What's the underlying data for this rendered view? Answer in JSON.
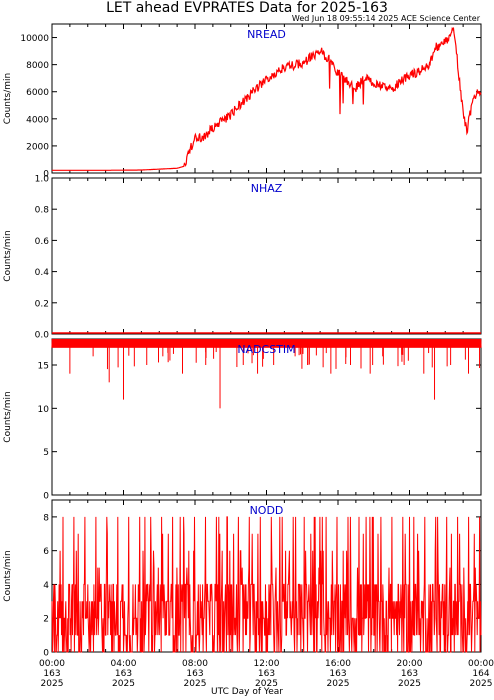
{
  "header": {
    "title": "LET ahead EVPRATES Data for 2025-163",
    "timestamp": "Wed Jun 18 09:55:14 2025 ACE Science Center"
  },
  "colors": {
    "series": "#ff0000",
    "panel_label": "#0000cc",
    "axes": "#000000"
  },
  "chart_data": [
    {
      "type": "line",
      "name": "NREAD",
      "ylabel": "Counts/min",
      "ylim": [
        0,
        11000
      ],
      "yticks": [
        0,
        2000,
        4000,
        6000,
        8000,
        10000
      ],
      "ytick_labels": [
        "0",
        "2000",
        "4000",
        "6000",
        "8000",
        "10000"
      ],
      "x_hours": [
        0,
        3,
        5,
        7,
        7.4,
        8,
        8.4,
        9,
        10,
        11,
        12,
        13,
        14,
        15,
        15.5,
        16,
        17,
        17.5,
        18,
        19,
        20,
        21,
        21.5,
        22,
        22.5,
        22.9,
        23.2,
        23.6,
        24
      ],
      "values": [
        200,
        200,
        220,
        350,
        500,
        2700,
        2600,
        3300,
        4300,
        5700,
        6900,
        7800,
        8100,
        9000,
        8400,
        7400,
        6300,
        7000,
        6600,
        6200,
        7200,
        7800,
        9300,
        9700,
        10600,
        5500,
        3000,
        5800,
        5900
      ]
    },
    {
      "type": "line",
      "name": "NHAZ",
      "ylabel": "Counts/min",
      "ylim": [
        0,
        1.0
      ],
      "yticks": [
        0,
        0.2,
        0.4,
        0.6,
        0.8,
        1.0
      ],
      "ytick_labels": [
        "0.0",
        "0.2",
        "0.4",
        "0.6",
        "0.8",
        "1.0"
      ],
      "x_hours": [
        0,
        24
      ],
      "values": [
        0,
        0
      ]
    },
    {
      "type": "line",
      "name": "NADCSTIM",
      "ylabel": "Counts/min",
      "ylim": [
        0,
        18
      ],
      "yticks": [
        0,
        5,
        10,
        15
      ],
      "ytick_labels": [
        "0",
        "5",
        "10",
        "15"
      ],
      "baseline": 17.5,
      "dips": [
        [
          1.0,
          14
        ],
        [
          2.3,
          16
        ],
        [
          3.2,
          13
        ],
        [
          4.0,
          11
        ],
        [
          5.3,
          15
        ],
        [
          6.2,
          16
        ],
        [
          7.3,
          14
        ],
        [
          8.6,
          15
        ],
        [
          9.4,
          10
        ],
        [
          10.7,
          15
        ],
        [
          11.5,
          14
        ],
        [
          12.4,
          15
        ],
        [
          13.6,
          16
        ],
        [
          14.3,
          15
        ],
        [
          15.6,
          14
        ],
        [
          16.7,
          15
        ],
        [
          17.8,
          14
        ],
        [
          18.5,
          16
        ],
        [
          19.7,
          15
        ],
        [
          20.8,
          14
        ],
        [
          21.4,
          11
        ],
        [
          22.3,
          15
        ],
        [
          23.3,
          14
        ]
      ]
    },
    {
      "type": "line",
      "name": "NODD",
      "ylabel": "Counts/min",
      "ylim": [
        0,
        9
      ],
      "yticks": [
        0,
        2,
        4,
        6,
        8
      ],
      "ytick_labels": [
        "0",
        "2",
        "4",
        "6",
        "8"
      ],
      "value_range": [
        0,
        8
      ]
    }
  ],
  "xaxis": {
    "title": "UTC Day of Year",
    "ticks": [
      {
        "hour": 0,
        "time": "00:00",
        "doy": "163",
        "year": "2025"
      },
      {
        "hour": 4,
        "time": "04:00",
        "doy": "163",
        "year": "2025"
      },
      {
        "hour": 8,
        "time": "08:00",
        "doy": "163",
        "year": "2025"
      },
      {
        "hour": 12,
        "time": "12:00",
        "doy": "163",
        "year": "2025"
      },
      {
        "hour": 16,
        "time": "16:00",
        "doy": "163",
        "year": "2025"
      },
      {
        "hour": 20,
        "time": "20:00",
        "doy": "163",
        "year": "2025"
      },
      {
        "hour": 24,
        "time": "00:00",
        "doy": "164",
        "year": "2025"
      }
    ]
  }
}
